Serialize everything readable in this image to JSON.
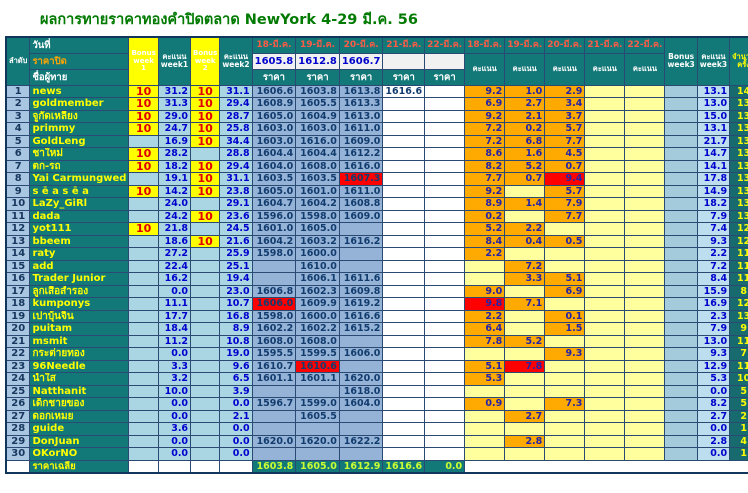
{
  "title": "ผลการทายราคาทองคำปิดตลาด NewYork 4-29 มี.ค. 56",
  "colors": {
    "header_teal": "#137878",
    "highlight_red": "#ff0000",
    "score_orange": "#ffaa00",
    "bonus_yellow": "#ffff00",
    "price_blue": "#95b3d7",
    "light_blue": "#aad6e4",
    "total_teal": "#31849b",
    "title_green": "#007a00"
  },
  "header": {
    "rank": "ลำดับ",
    "date_label": "วันที่",
    "close_label": "ราคาปิด",
    "name_label": "ชื่อผู้ทาย",
    "bonus_week1": "Bonus week 1",
    "score_week1": "คะแนน week1",
    "bonus_week2": "Bonus week 2",
    "score_week2": "คะแนน week2",
    "price_label": "ราคา",
    "score_label": "คะแนน",
    "bonus_week3": "Bonus week3",
    "score_week3": "คะแนน week3",
    "count_label": "จำนวนครั้ง",
    "total_label": "คะแนนสะสม",
    "avg_label": "คะแนนเฉลี่ย",
    "dates": [
      "18-มี.ค.",
      "19-มี.ค.",
      "20-มี.ค.",
      "21-มี.ค.",
      "22-มี.ค."
    ],
    "close_prices": [
      "1605.8",
      "1612.8",
      "1606.7",
      "",
      ""
    ]
  },
  "rows": [
    {
      "rank": "1",
      "name": "news",
      "bonus1": "10",
      "score1": "31.2",
      "bonus2": "10",
      "score2": "31.1",
      "prices": [
        "1606.6",
        "1603.8",
        "1613.8",
        "1616.6",
        ""
      ],
      "price_red": -1,
      "scores": [
        "9.2",
        "1.0",
        "2.9",
        "",
        ""
      ],
      "score_red": -1,
      "score3": "13.1",
      "count": "14",
      "total": "95.4",
      "avg": "5.39"
    },
    {
      "rank": "2",
      "name": "goldmember",
      "bonus1": "10",
      "score1": "31.3",
      "bonus2": "10",
      "score2": "29.4",
      "prices": [
        "1608.9",
        "1605.5",
        "1613.3",
        "",
        ""
      ],
      "price_red": -1,
      "scores": [
        "6.9",
        "2.7",
        "3.4",
        "",
        ""
      ],
      "score_red": -1,
      "score3": "13.0",
      "count": "13",
      "total": "93.7",
      "avg": "5.67"
    },
    {
      "rank": "3",
      "name": "จูกัดเหลียง",
      "bonus1": "10",
      "score1": "29.0",
      "bonus2": "10",
      "score2": "28.7",
      "prices": [
        "1605.0",
        "1604.9",
        "1613.0",
        "",
        ""
      ],
      "price_red": -1,
      "scores": [
        "9.2",
        "2.1",
        "3.7",
        "",
        ""
      ],
      "score_red": -1,
      "score3": "15.0",
      "count": "13",
      "total": "92.7",
      "avg": "5.59"
    },
    {
      "rank": "4",
      "name": "primmy",
      "bonus1": "10",
      "score1": "24.7",
      "bonus2": "10",
      "score2": "25.8",
      "prices": [
        "1603.0",
        "1603.0",
        "1611.0",
        "",
        ""
      ],
      "price_red": -1,
      "scores": [
        "7.2",
        "0.2",
        "5.7",
        "",
        ""
      ],
      "score_red": -1,
      "score3": "13.1",
      "count": "13",
      "total": "83.6",
      "avg": "4.89"
    },
    {
      "rank": "5",
      "name": "GoldLeng",
      "bonus1": "",
      "score1": "16.9",
      "bonus2": "10",
      "score2": "34.4",
      "prices": [
        "1603.0",
        "1616.0",
        "1609.0",
        "",
        ""
      ],
      "price_red": -1,
      "scores": [
        "7.2",
        "6.8",
        "7.7",
        "",
        ""
      ],
      "score_red": -1,
      "score3": "21.7",
      "count": "13",
      "total": "83.0",
      "avg": "5.62"
    },
    {
      "rank": "6",
      "name": "ชาใหม่",
      "bonus1": "10",
      "score1": "28.2",
      "bonus2": "",
      "score2": "28.8",
      "prices": [
        "1604.4",
        "1604.4",
        "1612.2",
        "",
        ""
      ],
      "price_red": -1,
      "scores": [
        "8.6",
        "1.6",
        "4.5",
        "",
        ""
      ],
      "score_red": -1,
      "score3": "14.7",
      "count": "13",
      "total": "81.7",
      "avg": "5.52"
    },
    {
      "rank": "7",
      "name": "ตก-รถ",
      "bonus1": "10",
      "score1": "18.2",
      "bonus2": "10",
      "score2": "29.4",
      "prices": [
        "1604.0",
        "1608.0",
        "1616.0",
        "",
        ""
      ],
      "price_red": -1,
      "scores": [
        "8.2",
        "5.2",
        "0.7",
        "",
        ""
      ],
      "score_red": -1,
      "score3": "14.1",
      "count": "13",
      "total": "81.7",
      "avg": "4.75"
    },
    {
      "rank": "8",
      "name": "Yai Carmungwed",
      "bonus1": "",
      "score1": "19.1",
      "bonus2": "10",
      "score2": "31.1",
      "prices": [
        "1603.5",
        "1603.5",
        "1607.3",
        "",
        ""
      ],
      "price_red": 2,
      "scores": [
        "7.7",
        "0.7",
        "9.4",
        "",
        ""
      ],
      "score_red": 2,
      "score3": "17.8",
      "count": "13",
      "total": "78.0",
      "avg": "5.23"
    },
    {
      "rank": "9",
      "name": "s ē a s ē a",
      "bonus1": "10",
      "score1": "14.2",
      "bonus2": "10",
      "score2": "23.8",
      "prices": [
        "1605.0",
        "1601.0",
        "1611.0",
        "",
        ""
      ],
      "price_red": -1,
      "scores": [
        "9.2",
        "",
        "5.7",
        "",
        ""
      ],
      "score_red": -1,
      "score3": "14.9",
      "count": "13",
      "total": "72.9",
      "avg": "4.07"
    },
    {
      "rank": "10",
      "name": "LaZy_GiRl",
      "bonus1": "",
      "score1": "24.0",
      "bonus2": "",
      "score2": "29.1",
      "prices": [
        "1604.7",
        "1604.2",
        "1608.8",
        "",
        ""
      ],
      "price_red": -1,
      "scores": [
        "8.9",
        "1.4",
        "7.9",
        "",
        ""
      ],
      "score_red": -1,
      "score3": "18.2",
      "count": "13",
      "total": "71.3",
      "avg": "5.48"
    },
    {
      "rank": "11",
      "name": "dada",
      "bonus1": "",
      "score1": "24.2",
      "bonus2": "10",
      "score2": "23.6",
      "prices": [
        "1596.0",
        "1598.0",
        "1609.0",
        "",
        ""
      ],
      "price_red": -1,
      "scores": [
        "0.2",
        "",
        "7.7",
        "",
        ""
      ],
      "score_red": -1,
      "score3": "7.9",
      "count": "13",
      "total": "65.7",
      "avg": "4.28"
    },
    {
      "rank": "12",
      "name": "yot111",
      "bonus1": "10",
      "score1": "21.8",
      "bonus2": "",
      "score2": "24.5",
      "prices": [
        "1601.0",
        "1605.0",
        "",
        "",
        ""
      ],
      "price_red": -1,
      "scores": [
        "5.2",
        "2.2",
        "",
        "",
        ""
      ],
      "score_red": -1,
      "score3": "7.4",
      "count": "12",
      "total": "63.7",
      "avg": "4.48"
    },
    {
      "rank": "13",
      "name": "bbeem",
      "bonus1": "",
      "score1": "18.6",
      "bonus2": "10",
      "score2": "21.6",
      "prices": [
        "1604.2",
        "1603.2",
        "1616.2",
        "",
        ""
      ],
      "price_red": -1,
      "scores": [
        "8.4",
        "0.4",
        "0.5",
        "",
        ""
      ],
      "score_red": -1,
      "score3": "9.3",
      "count": "12",
      "total": "59.5",
      "avg": "4.13"
    },
    {
      "rank": "14",
      "name": "raty",
      "bonus1": "",
      "score1": "27.2",
      "bonus2": "",
      "score2": "25.9",
      "prices": [
        "1598.0",
        "1600.0",
        "",
        "",
        ""
      ],
      "price_red": -1,
      "scores": [
        "2.2",
        "",
        "",
        "",
        ""
      ],
      "score_red": -1,
      "score3": "2.2",
      "count": "11",
      "total": "55.3",
      "avg": "5.03"
    },
    {
      "rank": "15",
      "name": "add",
      "bonus1": "",
      "score1": "22.4",
      "bonus2": "",
      "score2": "25.1",
      "prices": [
        "",
        "1610.0",
        "",
        "",
        ""
      ],
      "price_red": -1,
      "scores": [
        "",
        "7.2",
        "",
        "",
        ""
      ],
      "score_red": -1,
      "score3": "7.2",
      "count": "11",
      "total": "54.7",
      "avg": "4.97"
    },
    {
      "rank": "16",
      "name": "Trader Junior",
      "bonus1": "",
      "score1": "16.2",
      "bonus2": "",
      "score2": "19.4",
      "prices": [
        "",
        "1606.1",
        "1611.6",
        "",
        ""
      ],
      "price_red": -1,
      "scores": [
        "",
        "3.3",
        "5.1",
        "",
        ""
      ],
      "score_red": -1,
      "score3": "8.4",
      "count": "11",
      "total": "44.0",
      "avg": "4.00"
    },
    {
      "rank": "17",
      "name": "ลูกเสือสำรอง",
      "bonus1": "",
      "score1": "0.0",
      "bonus2": "",
      "score2": "23.0",
      "prices": [
        "1606.8",
        "1602.3",
        "1609.8",
        "",
        ""
      ],
      "price_red": -1,
      "scores": [
        "9.0",
        "",
        "6.9",
        "",
        ""
      ],
      "score_red": -1,
      "score3": "15.9",
      "count": "8",
      "total": "38.9",
      "avg": "0.00"
    },
    {
      "rank": "18",
      "name": "kumponys",
      "bonus1": "",
      "score1": "11.1",
      "bonus2": "",
      "score2": "10.7",
      "prices": [
        "1606.0",
        "1609.9",
        "1619.2",
        "",
        ""
      ],
      "price_red": 0,
      "scores": [
        "9.8",
        "7.1",
        "",
        "",
        ""
      ],
      "score_red": 0,
      "score3": "16.9",
      "count": "12",
      "total": "38.7",
      "avg": "3.23"
    },
    {
      "rank": "19",
      "name": "เปาบุ้นจิ้น",
      "bonus1": "",
      "score1": "17.7",
      "bonus2": "",
      "score2": "16.8",
      "prices": [
        "1598.0",
        "1600.0",
        "1616.6",
        "",
        ""
      ],
      "price_red": -1,
      "scores": [
        "2.2",
        "",
        "0.1",
        "",
        ""
      ],
      "score_red": -1,
      "score3": "2.3",
      "count": "13",
      "total": "36.8",
      "avg": "2.83"
    },
    {
      "rank": "20",
      "name": "puitam",
      "bonus1": "",
      "score1": "18.4",
      "bonus2": "",
      "score2": "8.9",
      "prices": [
        "1602.2",
        "1602.2",
        "1615.2",
        "",
        ""
      ],
      "price_red": -1,
      "scores": [
        "6.4",
        "",
        "1.5",
        "",
        ""
      ],
      "score_red": -1,
      "score3": "7.9",
      "count": "9",
      "total": "35.2",
      "avg": "0.00"
    },
    {
      "rank": "21",
      "name": "msmit",
      "bonus1": "",
      "score1": "11.2",
      "bonus2": "",
      "score2": "10.8",
      "prices": [
        "1608.0",
        "1608.0",
        "",
        "",
        ""
      ],
      "price_red": -1,
      "scores": [
        "7.8",
        "5.2",
        "",
        "",
        ""
      ],
      "score_red": -1,
      "score3": "13.0",
      "count": "11",
      "total": "35.0",
      "avg": "3.18"
    },
    {
      "rank": "22",
      "name": "กระต่ายทอง",
      "bonus1": "",
      "score1": "0.0",
      "bonus2": "",
      "score2": "19.0",
      "prices": [
        "1595.5",
        "1599.5",
        "1606.0",
        "",
        ""
      ],
      "price_red": -1,
      "scores": [
        "",
        "",
        "9.3",
        "",
        ""
      ],
      "score_red": -1,
      "score3": "9.3",
      "count": "7",
      "total": "28.3",
      "avg": "0.00"
    },
    {
      "rank": "23",
      "name": "96Needle",
      "bonus1": "",
      "score1": "3.3",
      "bonus2": "",
      "score2": "9.6",
      "prices": [
        "1610.7",
        "1610.6",
        "",
        "",
        ""
      ],
      "price_red": 1,
      "scores": [
        "5.1",
        "7.8",
        "",
        "",
        ""
      ],
      "score_red": 1,
      "score3": "12.9",
      "count": "11",
      "total": "25.8",
      "avg": "2.35"
    },
    {
      "rank": "24",
      "name": "น้ำใส",
      "bonus1": "",
      "score1": "3.2",
      "bonus2": "",
      "score2": "6.5",
      "prices": [
        "1601.1",
        "1601.1",
        "1620.0",
        "",
        ""
      ],
      "price_red": -1,
      "scores": [
        "5.3",
        "",
        "",
        "",
        ""
      ],
      "score_red": -1,
      "score3": "5.3",
      "count": "10",
      "total": "15.0",
      "avg": "1.50"
    },
    {
      "rank": "25",
      "name": "Natthanit",
      "bonus1": "",
      "score1": "10.0",
      "bonus2": "",
      "score2": "3.9",
      "prices": [
        "",
        "",
        "1618.0",
        "",
        ""
      ],
      "price_red": -1,
      "scores": [
        "",
        "",
        "",
        "",
        ""
      ],
      "score_red": -1,
      "score3": "0.0",
      "count": "5",
      "total": "13.9",
      "avg": "0.00"
    },
    {
      "rank": "26",
      "name": "เด็กชายของ",
      "bonus1": "",
      "score1": "0.0",
      "bonus2": "",
      "score2": "0.0",
      "prices": [
        "1596.7",
        "1599.0",
        "1604.0",
        "",
        ""
      ],
      "price_red": -1,
      "scores": [
        "0.9",
        "",
        "7.3",
        "",
        ""
      ],
      "score_red": -1,
      "score3": "8.2",
      "count": "5",
      "total": "8.2",
      "avg": "0.00"
    },
    {
      "rank": "27",
      "name": "ดอกเหมย",
      "bonus1": "",
      "score1": "0.0",
      "bonus2": "",
      "score2": "2.1",
      "prices": [
        "",
        "1605.5",
        "",
        "",
        ""
      ],
      "price_red": -1,
      "scores": [
        "",
        "2.7",
        "",
        "",
        ""
      ],
      "score_red": -1,
      "score3": "2.7",
      "count": "2",
      "total": "4.8",
      "avg": "0.00"
    },
    {
      "rank": "28",
      "name": "guide",
      "bonus1": "",
      "score1": "3.6",
      "bonus2": "",
      "score2": "0.0",
      "prices": [
        "",
        "",
        "",
        "",
        ""
      ],
      "price_red": -1,
      "scores": [
        "",
        "",
        "",
        "",
        ""
      ],
      "score_red": -1,
      "score3": "0.0",
      "count": "1",
      "total": "3.6",
      "avg": "0.00"
    },
    {
      "rank": "29",
      "name": "DonJuan",
      "bonus1": "",
      "score1": "0.0",
      "bonus2": "",
      "score2": "0.0",
      "prices": [
        "1620.0",
        "1620.0",
        "1622.2",
        "",
        ""
      ],
      "price_red": -1,
      "scores": [
        "",
        "2.8",
        "",
        "",
        ""
      ],
      "score_red": -1,
      "score3": "2.8",
      "count": "4",
      "total": "2.8",
      "avg": "0.00"
    },
    {
      "rank": "30",
      "name": "OKorNO",
      "bonus1": "",
      "score1": "0.0",
      "bonus2": "",
      "score2": "0.0",
      "prices": [
        "",
        "",
        "",
        "",
        ""
      ],
      "price_red": -1,
      "scores": [
        "",
        "",
        "",
        "",
        ""
      ],
      "score_red": -1,
      "score3": "0.0",
      "count": "1",
      "total": "0.0",
      "avg": "0.00"
    }
  ],
  "footer": {
    "label": "ราคาเฉลี่ย",
    "averages": [
      "1603.8",
      "1605.0",
      "1612.9",
      "1616.6",
      "0.0"
    ]
  }
}
